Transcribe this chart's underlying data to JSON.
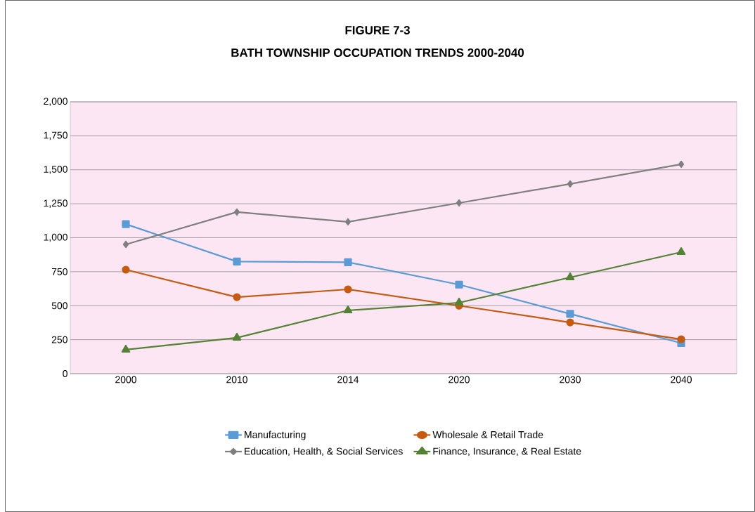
{
  "chart_data": {
    "type": "line",
    "title": "FIGURE 7-3",
    "subtitle": "BATH TOWNSHIP OCCUPATION TRENDS 2000-2040",
    "categories": [
      "2000",
      "2010",
      "2014",
      "2020",
      "2030",
      "2040"
    ],
    "series": [
      {
        "name": "Manufacturing",
        "color": "#5b9bd5",
        "marker": "square",
        "values": [
          1100,
          825,
          820,
          655,
          440,
          225
        ]
      },
      {
        "name": "Wholesale & Retail Trade",
        "color": "#c55a11",
        "marker": "circle",
        "values": [
          765,
          563,
          620,
          500,
          377,
          253
        ]
      },
      {
        "name": "Education, Health, & Social Services",
        "color": "#7f7f7f",
        "marker": "diamond",
        "values": [
          951,
          1189,
          1117,
          1256,
          1396,
          1541
        ]
      },
      {
        "name": "Finance, Insurance, & Real Estate",
        "color": "#548235",
        "marker": "triangle",
        "values": [
          176,
          264,
          465,
          522,
          708,
          894
        ]
      }
    ],
    "ylim": [
      0,
      2000
    ],
    "yticks": [
      0,
      250,
      500,
      750,
      {
        "value": 1000,
        "label": "1,000"
      },
      {
        "value": 1250,
        "label": "1,250"
      },
      {
        "value": 1500,
        "label": "1,500"
      },
      {
        "value": 1750,
        "label": "1,750"
      },
      {
        "value": 2000,
        "label": "2,000"
      }
    ],
    "grid": "y",
    "legend": "bottom",
    "line_style": "solid"
  }
}
